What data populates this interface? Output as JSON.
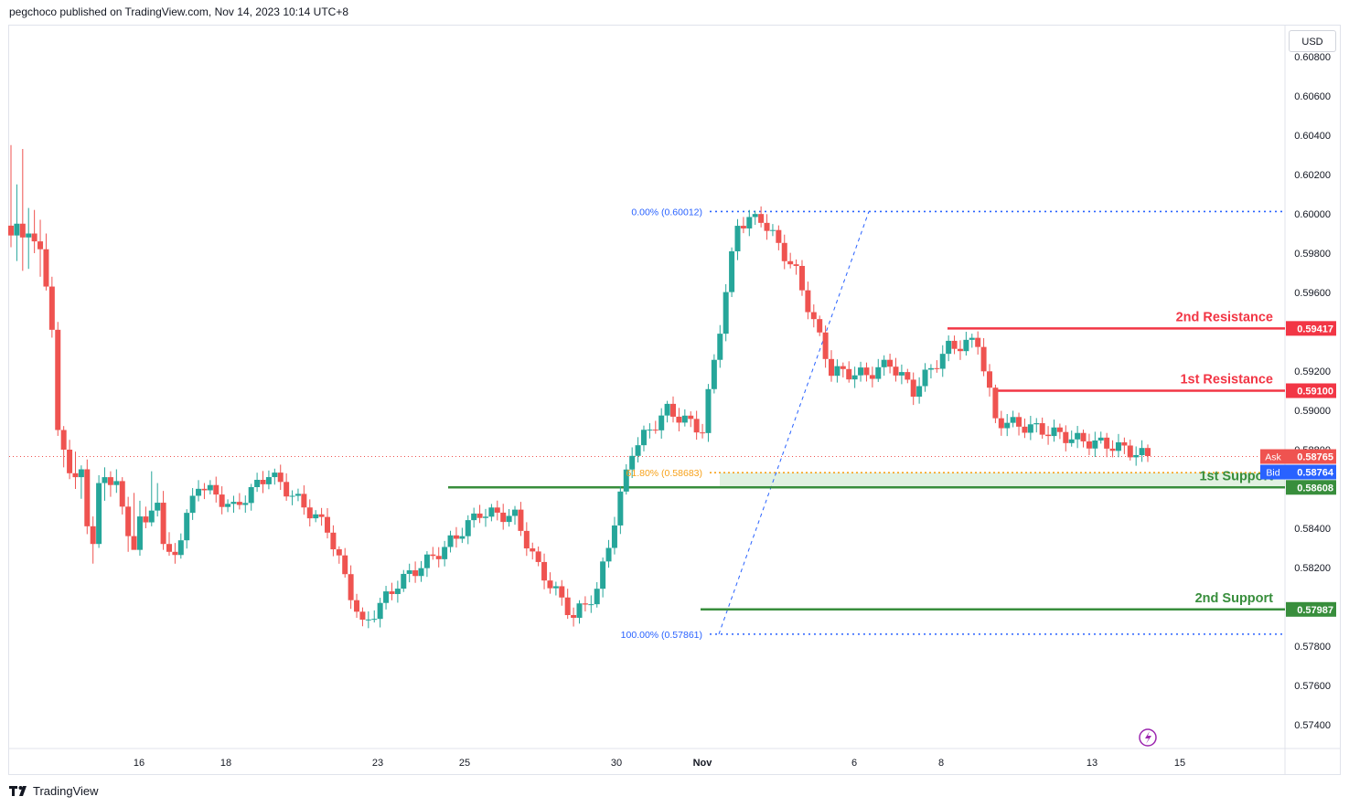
{
  "header": {
    "text": "pegchoco published on TradingView.com, Nov 14, 2023 10:14 UTC+8"
  },
  "currency": "USD",
  "footer": {
    "brand": "TradingView",
    "logo_icon": "tradingview-logo-icon"
  },
  "colors": {
    "up": "#26a69a",
    "down": "#ef5350",
    "resistance": "#f23645",
    "support": "#388e3c",
    "fib": "#2962ff",
    "fib_mid": "#f7a21b"
  },
  "y_axis": {
    "ticks": [
      "0.57400",
      "0.57600",
      "0.57800",
      "0.58000",
      "0.58200",
      "0.58400",
      "0.58600",
      "0.58800",
      "0.59000",
      "0.59200",
      "0.59400",
      "0.59600",
      "0.59800",
      "0.60000",
      "0.60200",
      "0.60400",
      "0.60600",
      "0.60800"
    ]
  },
  "x_axis": {
    "labels": [
      {
        "label": "16",
        "bold": false
      },
      {
        "label": "18",
        "bold": false
      },
      {
        "label": "23",
        "bold": false
      },
      {
        "label": "25",
        "bold": false
      },
      {
        "label": "30",
        "bold": false
      },
      {
        "label": "Nov",
        "bold": true
      },
      {
        "label": "6",
        "bold": false
      },
      {
        "label": "8",
        "bold": false
      },
      {
        "label": "13",
        "bold": false
      },
      {
        "label": "15",
        "bold": false
      }
    ]
  },
  "levels": [
    {
      "label": "2nd Resistance",
      "value": 0.59417,
      "price_label": "0.59417",
      "kind": "resistance"
    },
    {
      "label": "1st Resistance",
      "value": 0.591,
      "price_label": "0.59100",
      "kind": "resistance"
    },
    {
      "label": "1st Support",
      "value": 0.58608,
      "price_label": "0.58608",
      "kind": "support"
    },
    {
      "label": "2nd Support",
      "value": 0.57987,
      "price_label": "0.57987",
      "kind": "support"
    }
  ],
  "fibonacci": [
    {
      "label": "0.00% (0.60012)",
      "value": 0.60012
    },
    {
      "label": "61.80% (0.58683)",
      "value": 0.58683
    },
    {
      "label": "100.00% (0.57861)",
      "value": 0.57861
    }
  ],
  "quotes": {
    "ask_label": "Ask",
    "ask": "0.58765",
    "bid_label": "Bid",
    "bid": "0.58764",
    "last": 0.58765
  },
  "chart_data": {
    "type": "candlestick",
    "title": "",
    "ylim": [
      0.573,
      0.6088
    ],
    "candles": [
      {
        "o": 0.5994,
        "h": 0.6035,
        "l": 0.5983,
        "c": 0.5989
      },
      {
        "o": 0.5989,
        "h": 0.6015,
        "l": 0.5976,
        "c": 0.5995
      },
      {
        "o": 0.5995,
        "h": 0.6033,
        "l": 0.5971,
        "c": 0.5988
      },
      {
        "o": 0.5988,
        "h": 0.6003,
        "l": 0.5972,
        "c": 0.599
      },
      {
        "o": 0.599,
        "h": 0.6002,
        "l": 0.598,
        "c": 0.5986
      },
      {
        "o": 0.5986,
        "h": 0.5997,
        "l": 0.5968,
        "c": 0.5982
      },
      {
        "o": 0.5982,
        "h": 0.599,
        "l": 0.5961,
        "c": 0.5963
      },
      {
        "o": 0.5963,
        "h": 0.5968,
        "l": 0.5937,
        "c": 0.5941
      },
      {
        "o": 0.5941,
        "h": 0.5945,
        "l": 0.5887,
        "c": 0.589
      },
      {
        "o": 0.589,
        "h": 0.5892,
        "l": 0.5871,
        "c": 0.588
      },
      {
        "o": 0.588,
        "h": 0.5885,
        "l": 0.5865,
        "c": 0.5868
      },
      {
        "o": 0.5868,
        "h": 0.5879,
        "l": 0.586,
        "c": 0.5866
      },
      {
        "o": 0.5866,
        "h": 0.5872,
        "l": 0.5855,
        "c": 0.587
      },
      {
        "o": 0.587,
        "h": 0.5875,
        "l": 0.5837,
        "c": 0.5841
      },
      {
        "o": 0.5841,
        "h": 0.5846,
        "l": 0.5822,
        "c": 0.5832
      },
      {
        "o": 0.5832,
        "h": 0.5867,
        "l": 0.583,
        "c": 0.5863
      },
      {
        "o": 0.5863,
        "h": 0.5871,
        "l": 0.5854,
        "c": 0.5866
      },
      {
        "o": 0.5866,
        "h": 0.5869,
        "l": 0.5856,
        "c": 0.5862
      },
      {
        "o": 0.5862,
        "h": 0.587,
        "l": 0.5858,
        "c": 0.5864
      },
      {
        "o": 0.5864,
        "h": 0.5866,
        "l": 0.5847,
        "c": 0.5851
      },
      {
        "o": 0.5851,
        "h": 0.5856,
        "l": 0.5828,
        "c": 0.5836
      },
      {
        "o": 0.5836,
        "h": 0.5858,
        "l": 0.583,
        "c": 0.5829
      },
      {
        "o": 0.5829,
        "h": 0.5854,
        "l": 0.5826,
        "c": 0.5846
      },
      {
        "o": 0.5846,
        "h": 0.5851,
        "l": 0.584,
        "c": 0.5843
      },
      {
        "o": 0.5843,
        "h": 0.5869,
        "l": 0.5841,
        "c": 0.5849
      },
      {
        "o": 0.5849,
        "h": 0.5863,
        "l": 0.5846,
        "c": 0.5853
      },
      {
        "o": 0.5853,
        "h": 0.5859,
        "l": 0.5829,
        "c": 0.5832
      },
      {
        "o": 0.5832,
        "h": 0.5838,
        "l": 0.5826,
        "c": 0.5828
      }
    ]
  }
}
